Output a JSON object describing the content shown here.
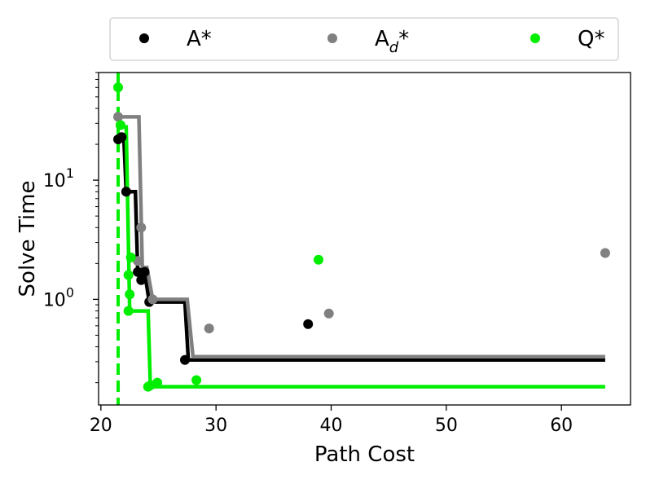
{
  "chart_data": {
    "type": "scatter",
    "title": "",
    "xlabel": "Path Cost",
    "ylabel": "Solve Time",
    "xlim": [
      19.8,
      66
    ],
    "ylim": [
      0.13,
      80
    ],
    "yscale": "log",
    "xticks": [
      20,
      30,
      40,
      50,
      60
    ],
    "yticks": [
      {
        "value": 10,
        "label_base": "10",
        "label_exp": "1"
      },
      {
        "value": 1,
        "label_base": "10",
        "label_exp": "0"
      }
    ],
    "grid": false,
    "legend_position": "top (above plot)",
    "vline": {
      "x": 21.5,
      "color": "#00ee00",
      "style": "dashed"
    },
    "series": [
      {
        "name": "A*",
        "name_base": "A",
        "name_sub": "",
        "name_suffix": "*",
        "color": "#000000",
        "points": [
          [
            21.5,
            22
          ],
          [
            21.8,
            23
          ],
          [
            22.2,
            8
          ],
          [
            23.2,
            1.7
          ],
          [
            23.5,
            1.45
          ],
          [
            23.8,
            1.7
          ],
          [
            24.2,
            0.95
          ],
          [
            27.3,
            0.31
          ],
          [
            38.0,
            0.62
          ]
        ],
        "frontier": [
          [
            21.5,
            22
          ],
          [
            22.0,
            22
          ],
          [
            22.2,
            8
          ],
          [
            23.0,
            8
          ],
          [
            23.2,
            1.7
          ],
          [
            23.8,
            1.7
          ],
          [
            24.2,
            0.95
          ],
          [
            27.3,
            0.95
          ],
          [
            27.6,
            0.31
          ],
          [
            63.8,
            0.31
          ]
        ]
      },
      {
        "name": "Ad*",
        "name_base": "A",
        "name_sub": "d",
        "name_suffix": "*",
        "color": "#808080",
        "points": [
          [
            21.5,
            34
          ],
          [
            23.5,
            4.0
          ],
          [
            23.2,
            2.1
          ],
          [
            24.5,
            1.0
          ],
          [
            29.4,
            0.57
          ],
          [
            39.8,
            0.76
          ],
          [
            63.8,
            2.45
          ]
        ],
        "frontier": [
          [
            21.5,
            34
          ],
          [
            23.3,
            34
          ],
          [
            23.6,
            1.85
          ],
          [
            24.0,
            1.85
          ],
          [
            24.5,
            1.0
          ],
          [
            27.5,
            1.0
          ],
          [
            28.0,
            0.33
          ],
          [
            63.8,
            0.33
          ]
        ]
      },
      {
        "name": "Q*",
        "name_base": "Q",
        "name_sub": "",
        "name_suffix": "*",
        "color": "#00ee00",
        "points": [
          [
            21.5,
            60
          ],
          [
            21.7,
            29
          ],
          [
            22.6,
            2.25
          ],
          [
            22.4,
            1.6
          ],
          [
            22.5,
            1.1
          ],
          [
            22.4,
            0.8
          ],
          [
            24.1,
            0.185
          ],
          [
            24.3,
            0.19
          ],
          [
            24.9,
            0.2
          ],
          [
            28.3,
            0.21
          ],
          [
            38.9,
            2.15
          ]
        ],
        "frontier": [
          [
            21.5,
            28
          ],
          [
            22.2,
            28
          ],
          [
            22.5,
            0.8
          ],
          [
            24.1,
            0.8
          ],
          [
            24.3,
            0.185
          ],
          [
            63.8,
            0.185
          ]
        ]
      }
    ]
  }
}
